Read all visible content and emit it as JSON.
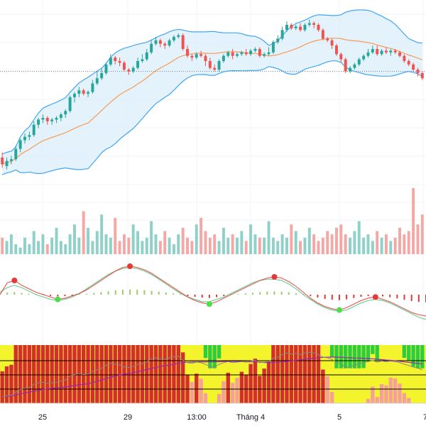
{
  "chart_data": {
    "type": "candlestick",
    "x_axis": {
      "tick_labels": [
        "25",
        "29",
        "13:00",
        "Tháng 4",
        "5",
        "7"
      ]
    },
    "colors": {
      "up": "#26a69a",
      "down": "#ef5350",
      "bb_band": "#42a5f5",
      "bb_fill": "#d9ecfb",
      "bb_basis": "#f79a55",
      "ref_line": "#7a8b99",
      "grid": "#f0f3fa",
      "vol_up": "#8fd0c8",
      "vol_down": "#f4a8a5",
      "osc_red": "#e53935",
      "osc_green": "#9ccc65",
      "osc_green_dot": "#4ade4a",
      "osc_signal": "#6fcf97",
      "heat_red": "#d32f2f",
      "heat_salmon": "#f5a09a",
      "heat_yellow": "#f4f42c",
      "heat_green": "#2ecc40",
      "heat_line_purple": "#9c27b0",
      "heat_line_gray": "#888888"
    },
    "panes": [
      "price",
      "volume",
      "oscillator",
      "heatmap"
    ],
    "overlays": [
      "bollinger_upper",
      "bollinger_basis",
      "bollinger_lower",
      "reference_line"
    ],
    "series": [
      {
        "kind": "ohlc",
        "values": [
          [
            153,
            149,
            156,
            147
          ],
          [
            148,
            151,
            153,
            146
          ],
          [
            151,
            152,
            154,
            149
          ],
          [
            152,
            158,
            160,
            151
          ],
          [
            158,
            163,
            164,
            156
          ],
          [
            163,
            165,
            167,
            161
          ],
          [
            165,
            166,
            168,
            163
          ],
          [
            166,
            172,
            174,
            165
          ],
          [
            172,
            175,
            176,
            170
          ],
          [
            175,
            176,
            178,
            173
          ],
          [
            176,
            174,
            177,
            172
          ],
          [
            174,
            175,
            176,
            172
          ],
          [
            175,
            176,
            177,
            173
          ],
          [
            176,
            178,
            179,
            174
          ],
          [
            178,
            180,
            181,
            176
          ],
          [
            180,
            188,
            189,
            179
          ],
          [
            188,
            190,
            191,
            185
          ],
          [
            190,
            192,
            194,
            188
          ],
          [
            192,
            190,
            193,
            189
          ],
          [
            190,
            191,
            192,
            188
          ],
          [
            191,
            196,
            198,
            190
          ],
          [
            196,
            199,
            203,
            195
          ],
          [
            199,
            202,
            205,
            198
          ],
          [
            202,
            207,
            208,
            201
          ],
          [
            207,
            211,
            213,
            206
          ],
          [
            211,
            209,
            212,
            207
          ],
          [
            209,
            208,
            211,
            206
          ],
          [
            208,
            204,
            209,
            203
          ],
          [
            204,
            203,
            205,
            201
          ],
          [
            203,
            205,
            206,
            202
          ],
          [
            205,
            209,
            211,
            204
          ],
          [
            209,
            210,
            213,
            208
          ],
          [
            210,
            214,
            216,
            209
          ],
          [
            214,
            219,
            221,
            213
          ],
          [
            219,
            221,
            223,
            218
          ],
          [
            221,
            219,
            222,
            217
          ],
          [
            219,
            218,
            220,
            216
          ],
          [
            218,
            221,
            222,
            217
          ],
          [
            221,
            223,
            224,
            220
          ],
          [
            223,
            224,
            225,
            222
          ],
          [
            224,
            216,
            225,
            215
          ],
          [
            216,
            212,
            218,
            211
          ],
          [
            212,
            211,
            213,
            209
          ],
          [
            211,
            213,
            214,
            210
          ],
          [
            213,
            212,
            215,
            211
          ],
          [
            212,
            209,
            213,
            206
          ],
          [
            209,
            205,
            211,
            204
          ],
          [
            205,
            204,
            207,
            203
          ],
          [
            204,
            209,
            210,
            203
          ],
          [
            209,
            212,
            213,
            208
          ],
          [
            212,
            214,
            215,
            211
          ],
          [
            214,
            212,
            216,
            210
          ],
          [
            212,
            213,
            214,
            211
          ],
          [
            213,
            214,
            215,
            212
          ],
          [
            214,
            213,
            216,
            212
          ],
          [
            213,
            215,
            216,
            212
          ],
          [
            215,
            216,
            217,
            214
          ],
          [
            216,
            212,
            217,
            211
          ],
          [
            212,
            213,
            214,
            211
          ],
          [
            213,
            214,
            217,
            212
          ],
          [
            214,
            220,
            221,
            213
          ],
          [
            220,
            222,
            224,
            219
          ],
          [
            222,
            227,
            229,
            221
          ],
          [
            227,
            230,
            232,
            226
          ],
          [
            230,
            228,
            231,
            227
          ],
          [
            228,
            229,
            230,
            227
          ],
          [
            229,
            227,
            231,
            226
          ],
          [
            227,
            230,
            231,
            226
          ],
          [
            230,
            231,
            233,
            229
          ],
          [
            231,
            230,
            232,
            228
          ],
          [
            230,
            227,
            231,
            226
          ],
          [
            227,
            222,
            228,
            221
          ],
          [
            222,
            221,
            223,
            220
          ],
          [
            221,
            218,
            222,
            216
          ],
          [
            218,
            213,
            219,
            212
          ],
          [
            213,
            210,
            214,
            208
          ],
          [
            210,
            203,
            211,
            202
          ],
          [
            203,
            205,
            206,
            202
          ],
          [
            205,
            207,
            208,
            204
          ],
          [
            207,
            210,
            211,
            206
          ],
          [
            210,
            212,
            213,
            209
          ],
          [
            212,
            214,
            216,
            211
          ],
          [
            214,
            216,
            218,
            213
          ],
          [
            216,
            213,
            218,
            212
          ],
          [
            213,
            215,
            216,
            212
          ],
          [
            215,
            214,
            217,
            213
          ],
          [
            214,
            215,
            216,
            212
          ],
          [
            215,
            214,
            216,
            213
          ],
          [
            214,
            212,
            215,
            211
          ],
          [
            212,
            209,
            213,
            208
          ],
          [
            209,
            207,
            210,
            206
          ],
          [
            207,
            204,
            208,
            203
          ],
          [
            204,
            202,
            205,
            200
          ],
          [
            202,
            199,
            203,
            198
          ]
        ]
      },
      {
        "kind": "volume",
        "values": [
          5,
          4,
          6,
          3,
          2,
          5,
          3,
          7,
          4,
          6,
          3,
          5,
          8,
          4,
          3,
          6,
          9,
          5,
          13,
          8,
          4,
          7,
          12,
          6,
          5,
          11,
          4,
          6,
          5,
          9,
          7,
          4,
          5,
          10,
          6,
          4,
          7,
          5,
          3,
          6,
          8,
          5,
          4,
          9,
          11,
          7,
          5,
          6,
          4,
          8,
          5,
          6,
          5,
          7,
          4,
          9,
          6,
          5,
          5,
          10,
          5,
          4,
          6,
          5,
          9,
          7,
          4,
          5,
          8,
          6,
          4,
          5,
          7,
          6,
          8,
          9,
          6,
          5,
          7,
          10,
          5,
          6,
          4,
          7,
          5,
          6,
          4,
          5,
          8,
          6,
          7,
          20,
          9,
          12
        ]
      },
      {
        "kind": "oscillator_macd",
        "macd": [
          0.0,
          1.0,
          1.2,
          0.8,
          0.5,
          0.2,
          0.0,
          -0.2,
          -0.4,
          -0.3,
          -0.1,
          0.1,
          0.4,
          0.8,
          1.2,
          1.6,
          2.0,
          2.3,
          2.4,
          2.3,
          2.1,
          1.8,
          1.4,
          1.0,
          0.6,
          0.2,
          -0.2,
          -0.5,
          -0.7,
          -0.8,
          -0.6,
          -0.3,
          0.0,
          0.3,
          0.6,
          0.9,
          1.2,
          1.4,
          1.5,
          1.4,
          1.1,
          0.7,
          0.2,
          -0.3,
          -0.7,
          -1.0,
          -1.2,
          -1.3,
          -1.1,
          -0.8,
          -0.5,
          -0.3,
          -0.2,
          -0.4,
          -0.6,
          -0.9,
          -1.2,
          -1.5,
          -1.7,
          -1.8
        ],
        "signal": [
          0.2,
          0.6,
          0.8,
          0.6,
          0.3,
          0.0,
          -0.2,
          -0.4,
          -0.5,
          -0.4,
          -0.2,
          0.1,
          0.5,
          0.9,
          1.3,
          1.7,
          2.0,
          2.2,
          2.3,
          2.2,
          2.0,
          1.7,
          1.3,
          0.9,
          0.5,
          0.1,
          -0.2,
          -0.4,
          -0.6,
          -0.6,
          -0.4,
          -0.2,
          0.1,
          0.4,
          0.7,
          1.0,
          1.2,
          1.3,
          1.3,
          1.2,
          0.9,
          0.5,
          0.0,
          -0.4,
          -0.8,
          -1.1,
          -1.3,
          -1.4,
          -1.3,
          -1.0,
          -0.7,
          -0.5,
          -0.4,
          -0.5,
          -0.7,
          -1.0,
          -1.3,
          -1.6,
          -1.9,
          -2.1
        ]
      }
    ]
  }
}
